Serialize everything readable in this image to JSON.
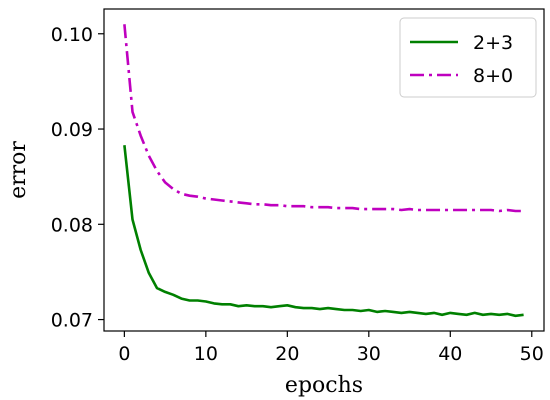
{
  "chart_data": {
    "type": "line",
    "xlabel": "epochs",
    "ylabel": "error",
    "xlim": [
      -2.5,
      51.5
    ],
    "ylim": [
      0.0688,
      0.1026
    ],
    "xticks": [
      0,
      10,
      20,
      30,
      40,
      50
    ],
    "xtick_labels": [
      "0",
      "10",
      "20",
      "30",
      "40",
      "50"
    ],
    "yticks": [
      0.07,
      0.08,
      0.09,
      0.1
    ],
    "ytick_labels": [
      "0.07",
      "0.08",
      "0.09",
      "0.10"
    ],
    "grid": false,
    "legend_position": "top-right",
    "x": [
      0,
      1,
      2,
      3,
      4,
      5,
      6,
      7,
      8,
      9,
      10,
      11,
      12,
      13,
      14,
      15,
      16,
      17,
      18,
      19,
      20,
      21,
      22,
      23,
      24,
      25,
      26,
      27,
      28,
      29,
      30,
      31,
      32,
      33,
      34,
      35,
      36,
      37,
      38,
      39,
      40,
      41,
      42,
      43,
      44,
      45,
      46,
      47,
      48,
      49
    ],
    "series": [
      {
        "name": "2+3",
        "color": "#008000",
        "style": "solid",
        "values": [
          0.0883,
          0.0805,
          0.0773,
          0.0749,
          0.0733,
          0.0729,
          0.0726,
          0.0722,
          0.072,
          0.072,
          0.0719,
          0.0717,
          0.0716,
          0.0716,
          0.0714,
          0.0715,
          0.0714,
          0.0714,
          0.0713,
          0.0714,
          0.0715,
          0.0713,
          0.0712,
          0.0712,
          0.0711,
          0.0712,
          0.0711,
          0.071,
          0.071,
          0.0709,
          0.071,
          0.0708,
          0.0709,
          0.0708,
          0.0707,
          0.0708,
          0.0707,
          0.0706,
          0.0707,
          0.0705,
          0.0707,
          0.0706,
          0.0705,
          0.0707,
          0.0705,
          0.0706,
          0.0705,
          0.0706,
          0.0704,
          0.0705
        ]
      },
      {
        "name": "8+0",
        "color": "#bf00bf",
        "style": "dashdot",
        "values": [
          0.101,
          0.0918,
          0.0893,
          0.0872,
          0.0856,
          0.0844,
          0.0837,
          0.0832,
          0.083,
          0.0829,
          0.0827,
          0.0826,
          0.0825,
          0.0824,
          0.0823,
          0.0822,
          0.0821,
          0.0821,
          0.082,
          0.082,
          0.0819,
          0.0819,
          0.0819,
          0.0818,
          0.0818,
          0.0818,
          0.0817,
          0.0817,
          0.0817,
          0.0816,
          0.0816,
          0.0816,
          0.0816,
          0.0816,
          0.0815,
          0.0816,
          0.0815,
          0.0815,
          0.0815,
          0.0815,
          0.0815,
          0.0815,
          0.0815,
          0.0815,
          0.0815,
          0.0815,
          0.0814,
          0.0815,
          0.0814,
          0.0814
        ]
      }
    ]
  }
}
